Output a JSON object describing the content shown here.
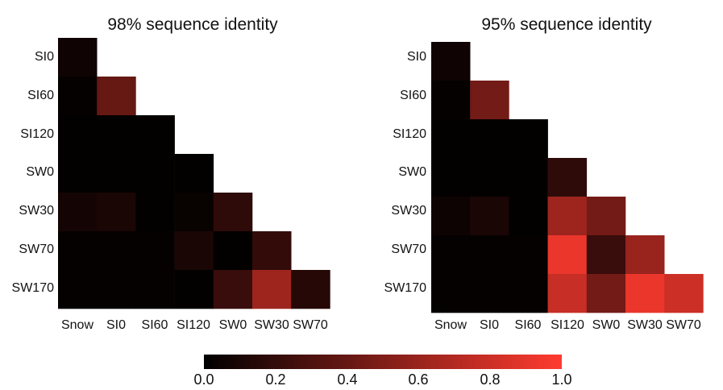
{
  "chart_data": [
    {
      "type": "heatmap",
      "title": "98% sequence identity",
      "rows": [
        "SI0",
        "SI60",
        "SI120",
        "SW0",
        "SW30",
        "SW70",
        "SW170"
      ],
      "columns": [
        "Snow",
        "SI0",
        "SI60",
        "SI120",
        "SW0",
        "SW30",
        "SW70"
      ],
      "layout": "lower-triangular",
      "values": [
        [
          0.06
        ],
        [
          0.02,
          0.4
        ],
        [
          0.01,
          0.01,
          0.01
        ],
        [
          0.01,
          0.01,
          0.01,
          0.01
        ],
        [
          0.08,
          0.1,
          0.01,
          0.03,
          0.18
        ],
        [
          0.02,
          0.02,
          0.02,
          0.1,
          0.01,
          0.2
        ],
        [
          0.02,
          0.02,
          0.02,
          0.01,
          0.22,
          0.62,
          0.15
        ]
      ],
      "color_range": [
        0.0,
        1.0
      ]
    },
    {
      "type": "heatmap",
      "title": "95% sequence identity",
      "rows": [
        "SI0",
        "SI60",
        "SI120",
        "SW0",
        "SW30",
        "SW70",
        "SW170"
      ],
      "columns": [
        "Snow",
        "SI0",
        "SI60",
        "SI120",
        "SW0",
        "SW30",
        "SW70"
      ],
      "layout": "lower-triangular",
      "values": [
        [
          0.06
        ],
        [
          0.02,
          0.45
        ],
        [
          0.01,
          0.01,
          0.01
        ],
        [
          0.01,
          0.01,
          0.01,
          0.18
        ],
        [
          0.05,
          0.1,
          0.01,
          0.62,
          0.45
        ],
        [
          0.02,
          0.02,
          0.02,
          0.92,
          0.22,
          0.6
        ],
        [
          0.02,
          0.02,
          0.02,
          0.78,
          0.45,
          0.92,
          0.8
        ]
      ],
      "color_range": [
        0.0,
        1.0
      ]
    }
  ],
  "colorbar": {
    "ticks": [
      "0.0",
      "0.2",
      "0.4",
      "0.6",
      "0.8",
      "1.0"
    ],
    "min": 0.0,
    "max": 1.0,
    "color_low": "#000000",
    "color_high": "#ff3b30"
  }
}
